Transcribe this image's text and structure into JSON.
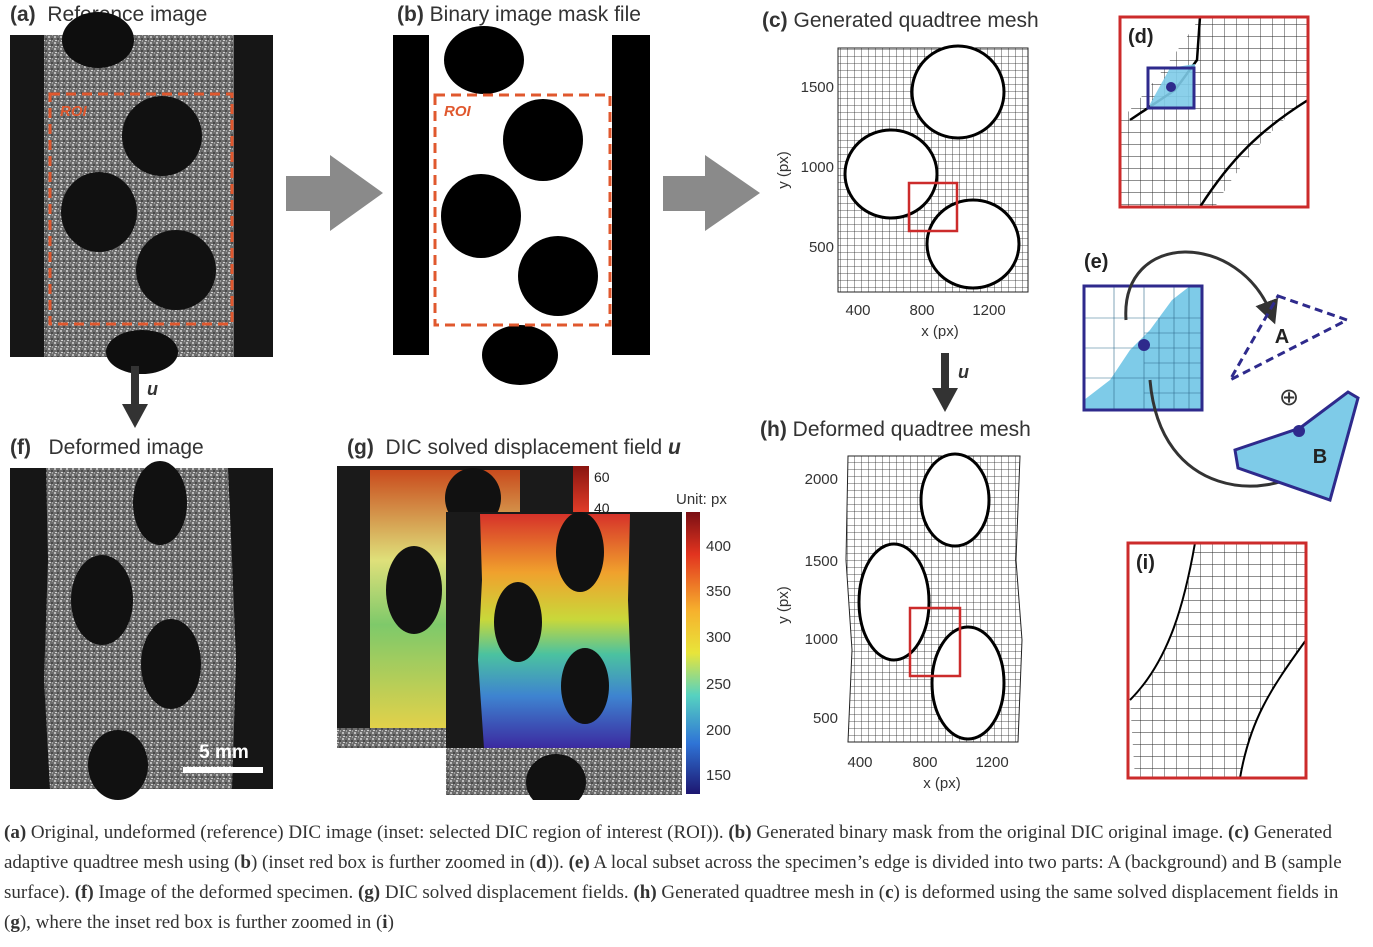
{
  "panels": {
    "a": {
      "tag": "(a)",
      "title": "Reference image",
      "roi": "ROI"
    },
    "b": {
      "tag": "(b)",
      "title": "Binary image mask file",
      "roi": "ROI"
    },
    "c": {
      "tag": "(c)",
      "title": "Generated quadtree mesh",
      "xlabel": "x (px)",
      "ylabel": "y (px)",
      "xticks": [
        "400",
        "800",
        "1200"
      ],
      "yticks": [
        "1500",
        "1000",
        "500"
      ]
    },
    "d": {
      "tag": "(d)"
    },
    "e": {
      "tag": "(e)",
      "part_a": "A",
      "part_b": "B",
      "operator": "⊕"
    },
    "f": {
      "tag": "(f)",
      "title": "Deformed image",
      "scale": "5 mm"
    },
    "g": {
      "tag": "(g)",
      "title": "DIC solved displacement field",
      "title_symbol": "u",
      "unit": "Unit: px",
      "cbar_ticks": [
        "400",
        "350",
        "300",
        "250",
        "200",
        "150"
      ],
      "cbar2_ticks": [
        "60",
        "40"
      ]
    },
    "h": {
      "tag": "(h)",
      "title": "Deformed quadtree mesh",
      "xlabel": "x (px)",
      "ylabel": "y (px)",
      "xticks": [
        "400",
        "800",
        "1200"
      ],
      "yticks": [
        "2000",
        "1500",
        "1000",
        "500"
      ]
    },
    "i": {
      "tag": "(i)"
    }
  },
  "arrows": {
    "down_label": "u"
  },
  "colors": {
    "roi": "#e0582e",
    "red_box": "#cc2b2b",
    "blue_box": "#2e2a8c",
    "cyan": "#7ecbe8",
    "gray_arrow": "#8a8a8a"
  },
  "caption": [
    {
      "bold": "(a)",
      "text": " Original, undeformed (reference) DIC image (inset: selected DIC region of interest (ROI)). "
    },
    {
      "bold": "(b)",
      "text": " Generated binary mask from the original DIC original image. "
    },
    {
      "bold": "(c)",
      "text": " Generated adaptive quadtree mesh using ("
    },
    {
      "bold": "b",
      "text": ") (inset red box is further zoomed in ("
    },
    {
      "bold": "d",
      "text": ")). "
    },
    {
      "bold": "(e)",
      "text": " A local subset across the specimen’s edge is divided into two parts: A (background) and B (sample surface). "
    },
    {
      "bold": "(f)",
      "text": " Image of the deformed specimen. "
    },
    {
      "bold": "(g)",
      "text": " DIC solved displacement fields. "
    },
    {
      "bold": "(h)",
      "text": " Generated quadtree mesh in ("
    },
    {
      "bold": "c",
      "text": ") is deformed using the same solved displacement fields in ("
    },
    {
      "bold": "g",
      "text": "), where the inset red box is further zoomed in ("
    },
    {
      "bold": "i",
      "text": ")"
    }
  ]
}
